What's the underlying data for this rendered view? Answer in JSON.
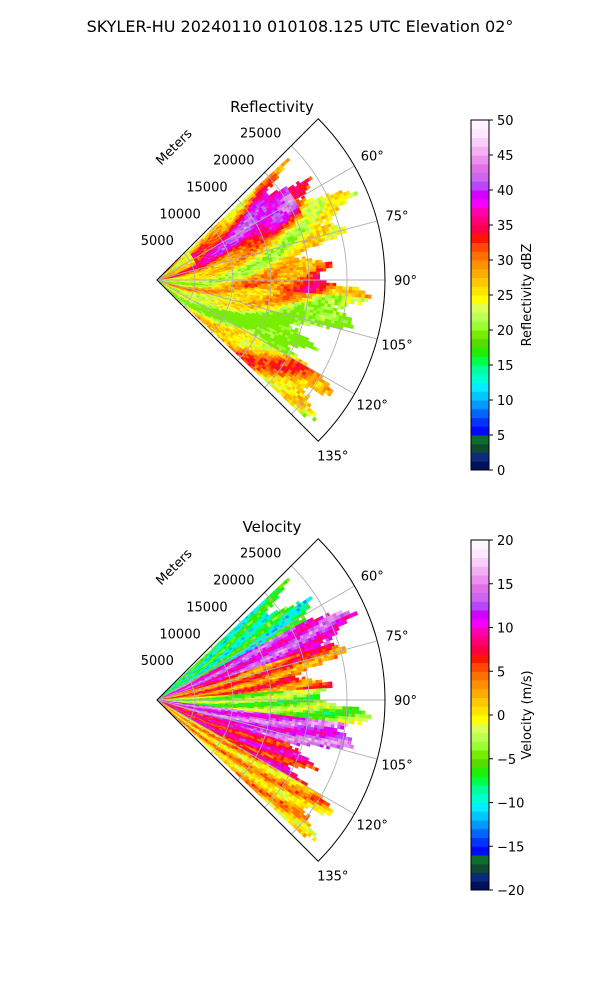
{
  "figure": {
    "title": "SKYLER-HU  20240110  010108.125 UTC Elevation 02°"
  },
  "chart_data": [
    {
      "type": "heatmap",
      "projection": "polar-sector",
      "title": "Reflectivity",
      "radial_axis_label": "Meters",
      "theta_range_deg": [
        45,
        135
      ],
      "r_range_m": [
        0,
        30000
      ],
      "r_ticks": [
        5000,
        10000,
        15000,
        20000,
        25000
      ],
      "r_tick_labels": [
        "5000",
        "10000",
        "15000",
        "20000",
        "25000"
      ],
      "theta_ticks": [
        60,
        75,
        90,
        105,
        120,
        135
      ],
      "theta_tick_labels": [
        "60°",
        "75°",
        "90°",
        "105°",
        "120°",
        "135°"
      ],
      "grid": true,
      "colorbar": {
        "label": "Reflectivity dBZ",
        "range": [
          0,
          50
        ],
        "ticks": [
          0,
          5,
          10,
          15,
          20,
          25,
          30,
          35,
          40,
          45,
          50
        ],
        "tick_labels": [
          "0",
          "5",
          "10",
          "15",
          "20",
          "25",
          "30",
          "35",
          "40",
          "45",
          "50"
        ],
        "colors": [
          "#001060",
          "#0a2a7a",
          "#0f4a30",
          "#0e6e2c",
          "#0008ff",
          "#0033ff",
          "#0066ff",
          "#0099ff",
          "#00c8ff",
          "#00eeff",
          "#00ffd0",
          "#00ff9c",
          "#00ff44",
          "#22ee00",
          "#55dd00",
          "#77ee00",
          "#99ff33",
          "#bbff55",
          "#ddff55",
          "#ffff00",
          "#ffe400",
          "#ffc800",
          "#ffac00",
          "#ff9000",
          "#ff7000",
          "#ff4800",
          "#ff1400",
          "#ff0044",
          "#ff0077",
          "#ff00b0",
          "#f400ff",
          "#d400ff",
          "#bb44ff",
          "#cc66ee",
          "#e070e8",
          "#ec90ee",
          "#f4b0f4",
          "#fad0fa",
          "#fde8fd",
          "#fff4ff"
        ]
      }
    },
    {
      "type": "heatmap",
      "projection": "polar-sector",
      "title": "Velocity",
      "radial_axis_label": "Meters",
      "theta_range_deg": [
        45,
        135
      ],
      "r_range_m": [
        0,
        30000
      ],
      "r_ticks": [
        5000,
        10000,
        15000,
        20000,
        25000
      ],
      "r_tick_labels": [
        "5000",
        "10000",
        "15000",
        "20000",
        "25000"
      ],
      "theta_ticks": [
        60,
        75,
        90,
        105,
        120,
        135
      ],
      "theta_tick_labels": [
        "60°",
        "75°",
        "90°",
        "105°",
        "120°",
        "135°"
      ],
      "grid": true,
      "colorbar": {
        "label": "Velocity (m/s)",
        "range": [
          -20,
          20
        ],
        "ticks": [
          -20,
          -15,
          -10,
          -5,
          0,
          5,
          10,
          15,
          20
        ],
        "tick_labels": [
          "−20",
          "−15",
          "−10",
          "−5",
          "0",
          "5",
          "10",
          "15",
          "20"
        ],
        "colors": [
          "#001060",
          "#0a2a7a",
          "#0f4a30",
          "#0e6e2c",
          "#0008ff",
          "#0033ff",
          "#0066ff",
          "#0099ff",
          "#00c8ff",
          "#00eeff",
          "#00ffd0",
          "#00ff9c",
          "#00ff44",
          "#22ee00",
          "#55dd00",
          "#77ee00",
          "#99ff33",
          "#bbff55",
          "#ddff55",
          "#ffff00",
          "#ffe400",
          "#ffc800",
          "#ffac00",
          "#ff9000",
          "#ff7000",
          "#ff4800",
          "#ff1400",
          "#ff0044",
          "#ff0077",
          "#ff00b0",
          "#f400ff",
          "#d400ff",
          "#bb44ff",
          "#cc66ee",
          "#e070e8",
          "#ec90ee",
          "#f4b0f4",
          "#fad0fa",
          "#fde8fd",
          "#fff4ff"
        ]
      }
    }
  ]
}
